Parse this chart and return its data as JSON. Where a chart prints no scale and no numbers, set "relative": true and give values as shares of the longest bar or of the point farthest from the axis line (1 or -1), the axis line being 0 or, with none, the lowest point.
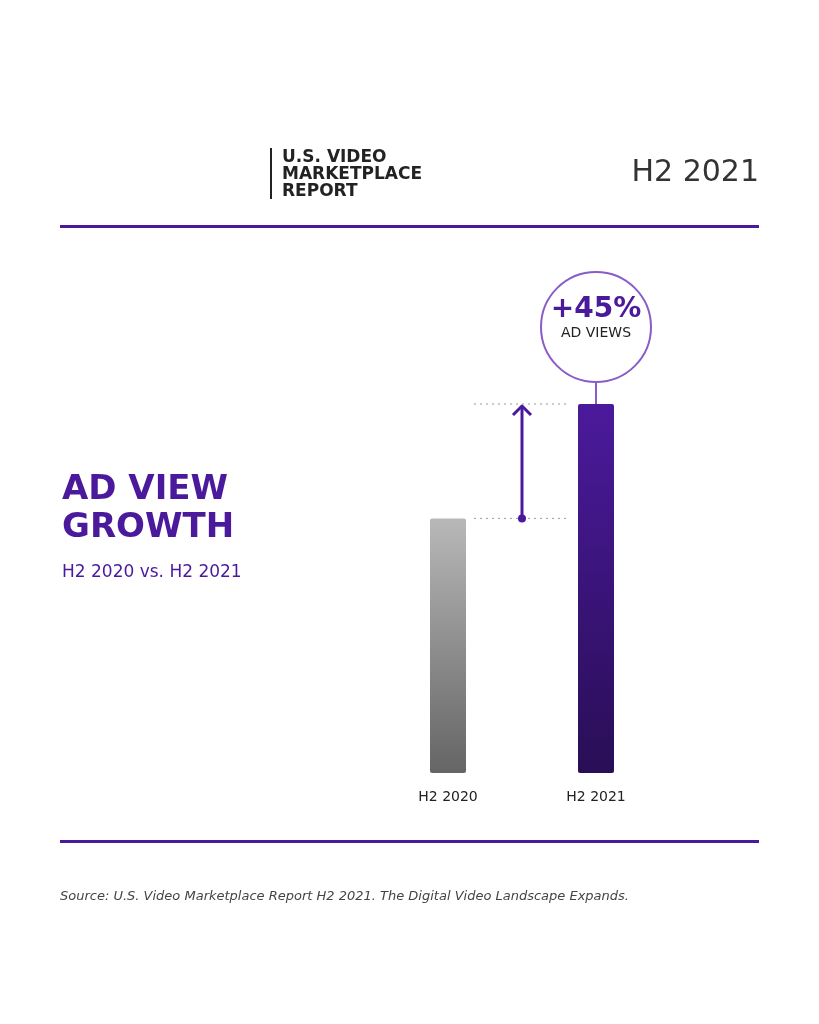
{
  "chart_data": {
    "type": "bar",
    "title": "AD VIEW GROWTH",
    "subtitle": "H2 2020 vs. H2 2021",
    "categories": [
      "H2 2020",
      "H2 2021"
    ],
    "values": [
      0.69,
      1
    ],
    "colors": [
      "#b8b8b8",
      "#4b1a9c"
    ],
    "relative": true,
    "ref_lines": [
      {
        "axis": "y",
        "value": 0.69,
        "color": "#999999",
        "line_style": "dotted"
      },
      {
        "axis": "y",
        "value": 1,
        "color": "#999999",
        "line_style": "dotted"
      }
    ],
    "annotations": [
      "U.S. VIDEO MARKETPLACE REPORT",
      "H2 2021",
      {
        "text": "+45% AD VIEWS",
        "x": "H2 2021",
        "y": 1
      },
      "Source: U.S. Video Marketplace Report H2 2021. The Digital Video Landscape Expands."
    ]
  }
}
